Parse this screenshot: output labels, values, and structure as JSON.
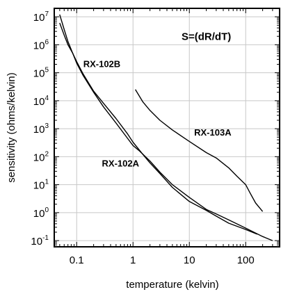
{
  "chart_data": {
    "type": "line",
    "title": "",
    "xlabel": "temperature (kelvin)",
    "ylabel": "sensitivity (ohms/kelvin)",
    "x_scale": "log",
    "y_scale": "log",
    "xlim": [
      0.04,
      400
    ],
    "ylim": [
      0.06,
      20000000
    ],
    "grid": true,
    "x_ticks": [
      {
        "value": 0.1,
        "label": "0.1"
      },
      {
        "value": 1,
        "label": "1"
      },
      {
        "value": 10,
        "label": "10"
      },
      {
        "value": 100,
        "label": "100"
      }
    ],
    "y_ticks": [
      {
        "value": 10000000,
        "base": "10",
        "exp": "7"
      },
      {
        "value": 1000000,
        "base": "10",
        "exp": "6"
      },
      {
        "value": 100000,
        "base": "10",
        "exp": "5"
      },
      {
        "value": 10000,
        "base": "10",
        "exp": "4"
      },
      {
        "value": 1000,
        "base": "10",
        "exp": "3"
      },
      {
        "value": 100,
        "base": "10",
        "exp": "2"
      },
      {
        "value": 10,
        "base": "10",
        "exp": "1"
      },
      {
        "value": 1,
        "base": "10",
        "exp": "0"
      },
      {
        "value": 0.1,
        "base": "10",
        "exp": "-1"
      }
    ],
    "annotations": [
      {
        "text": "S=(dR/dT)",
        "x": 20,
        "y": 1500000,
        "style": "big"
      },
      {
        "text": "RX-102B",
        "x": 0.28,
        "y": 160000,
        "style": "normal"
      },
      {
        "text": "RX-103A",
        "x": 26,
        "y": 560,
        "style": "normal"
      },
      {
        "text": "RX-102A",
        "x": 0.6,
        "y": 45,
        "style": "normal"
      }
    ],
    "series": [
      {
        "label": "RX-102B",
        "color": "#000000",
        "points": [
          [
            0.05,
            12000000
          ],
          [
            0.06,
            3500000
          ],
          [
            0.07,
            1300000
          ],
          [
            0.085,
            500000
          ],
          [
            0.1,
            220000
          ],
          [
            0.13,
            80000
          ],
          [
            0.2,
            20000
          ],
          [
            0.3,
            6000
          ],
          [
            0.5,
            1600
          ],
          [
            0.8,
            450
          ],
          [
            1.0,
            250
          ],
          [
            1.3,
            160
          ],
          [
            2,
            70
          ],
          [
            3,
            28
          ],
          [
            5,
            10
          ],
          [
            10,
            3.5
          ],
          [
            20,
            1.3
          ],
          [
            30,
            0.9
          ],
          [
            50,
            0.55
          ],
          [
            100,
            0.28
          ],
          [
            200,
            0.14
          ],
          [
            300,
            0.1
          ]
        ]
      },
      {
        "label": "RX-102A",
        "color": "#000000",
        "points": [
          [
            0.05,
            6000000
          ],
          [
            0.06,
            2200000
          ],
          [
            0.07,
            1000000
          ],
          [
            0.085,
            500000
          ],
          [
            0.1,
            250000
          ],
          [
            0.13,
            90000
          ],
          [
            0.2,
            22000
          ],
          [
            0.3,
            8000
          ],
          [
            0.5,
            2300
          ],
          [
            0.8,
            650
          ],
          [
            1.0,
            330
          ],
          [
            1.5,
            120
          ],
          [
            2,
            60
          ],
          [
            3,
            25
          ],
          [
            5,
            8
          ],
          [
            10,
            2.5
          ],
          [
            20,
            1.2
          ],
          [
            30,
            0.75
          ],
          [
            50,
            0.42
          ],
          [
            100,
            0.25
          ],
          [
            160,
            0.17
          ]
        ]
      },
      {
        "label": "RX-103A",
        "color": "#000000",
        "points": [
          [
            1.1,
            25000
          ],
          [
            1.5,
            9000
          ],
          [
            2,
            4500
          ],
          [
            3,
            2000
          ],
          [
            5,
            900
          ],
          [
            10,
            350
          ],
          [
            20,
            140
          ],
          [
            30,
            90
          ],
          [
            50,
            40
          ],
          [
            70,
            20
          ],
          [
            100,
            10
          ],
          [
            120,
            5
          ],
          [
            150,
            2.2
          ],
          [
            200,
            1.1
          ]
        ]
      }
    ]
  }
}
